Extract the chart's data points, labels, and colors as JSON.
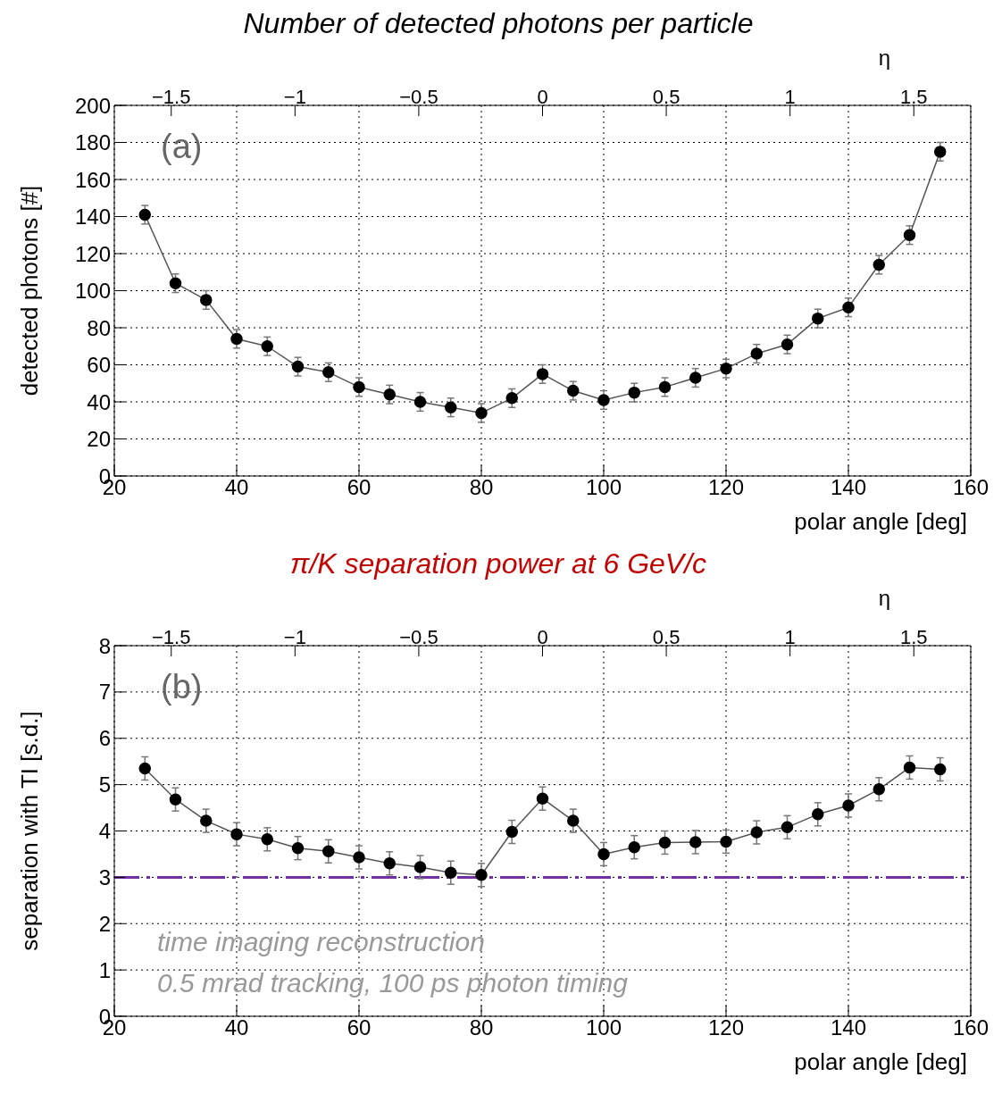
{
  "chart_data": [
    {
      "type": "line",
      "title": "Number of detected photons per particle",
      "xlabel": "polar angle [deg]",
      "ylabel": "detected photons [#]",
      "x2label": "η",
      "x": [
        25,
        30,
        35,
        40,
        45,
        50,
        55,
        60,
        65,
        70,
        75,
        80,
        85,
        90,
        95,
        100,
        105,
        110,
        115,
        120,
        125,
        130,
        135,
        140,
        145,
        150,
        155
      ],
      "series": [
        {
          "color": "#000000",
          "values": [
            141,
            104,
            95,
            74,
            70,
            59,
            56,
            48,
            44,
            40,
            37,
            34,
            42,
            55,
            46,
            41,
            45,
            48,
            53,
            58,
            66,
            71,
            85,
            91,
            114,
            130,
            175
          ],
          "errors": [
            5,
            5,
            5,
            5,
            5,
            5,
            5,
            5,
            5,
            5,
            5,
            5,
            5,
            5,
            5,
            5,
            5,
            5,
            5,
            5,
            5,
            5,
            5,
            5,
            5,
            5,
            5
          ]
        }
      ],
      "xlim": [
        20,
        160
      ],
      "xticks": [
        20,
        40,
        60,
        80,
        100,
        120,
        140,
        160
      ],
      "ylim": [
        0,
        200
      ],
      "yticks": [
        0,
        20,
        40,
        60,
        80,
        100,
        120,
        140,
        160,
        180,
        200
      ],
      "x2lim": [
        -1.73,
        1.73
      ],
      "x2ticks": [
        {
          "value": -1.5,
          "label": "−1.5"
        },
        {
          "value": -1,
          "label": "−1"
        },
        {
          "value": -0.5,
          "label": "−0.5"
        },
        0,
        0.5,
        1,
        1.5
      ],
      "grid": true,
      "marker": "circle",
      "line_style": "solid",
      "legend": false,
      "annotations": [
        "(a)"
      ]
    },
    {
      "type": "line",
      "title": "π/K separation power at 6 GeV/c",
      "xlabel": "polar angle [deg]",
      "ylabel": "separation with TI [s.d.]",
      "x2label": "η",
      "x": [
        25,
        30,
        35,
        40,
        45,
        50,
        55,
        60,
        65,
        70,
        75,
        80,
        85,
        90,
        95,
        100,
        105,
        110,
        115,
        120,
        125,
        130,
        135,
        140,
        145,
        150,
        155
      ],
      "series": [
        {
          "color": "#000000",
          "values": [
            5.35,
            4.68,
            4.22,
            3.93,
            3.82,
            3.63,
            3.56,
            3.43,
            3.3,
            3.22,
            3.1,
            3.05,
            3.98,
            4.7,
            4.22,
            3.5,
            3.65,
            3.75,
            3.76,
            3.77,
            3.97,
            4.08,
            4.36,
            4.55,
            4.9,
            5.37,
            5.33
          ],
          "errors": [
            0.25,
            0.25,
            0.25,
            0.25,
            0.25,
            0.25,
            0.25,
            0.25,
            0.25,
            0.25,
            0.25,
            0.25,
            0.25,
            0.25,
            0.25,
            0.25,
            0.25,
            0.25,
            0.25,
            0.25,
            0.25,
            0.25,
            0.25,
            0.25,
            0.25,
            0.25,
            0.25
          ]
        }
      ],
      "xlim": [
        20,
        160
      ],
      "xticks": [
        20,
        40,
        60,
        80,
        100,
        120,
        140,
        160
      ],
      "ylim": [
        0,
        8
      ],
      "yticks": [
        0,
        1,
        2,
        3,
        4,
        5,
        6,
        7,
        8
      ],
      "x2lim": [
        -1.73,
        1.73
      ],
      "x2ticks": [
        {
          "value": -1.5,
          "label": "−1.5"
        },
        {
          "value": -1,
          "label": "−1"
        },
        {
          "value": -0.5,
          "label": "−0.5"
        },
        0,
        0.5,
        1,
        1.5
      ],
      "ref_lines": [
        {
          "axis": "y",
          "value": 3,
          "label": null,
          "color": "#7030a0",
          "line_style": "dashed"
        }
      ],
      "grid": true,
      "marker": "circle",
      "line_style": "solid",
      "legend": false,
      "annotations": [
        "(b)",
        "time imaging reconstruction",
        "0.5 mrad tracking, 100 ps photon timing"
      ]
    }
  ]
}
